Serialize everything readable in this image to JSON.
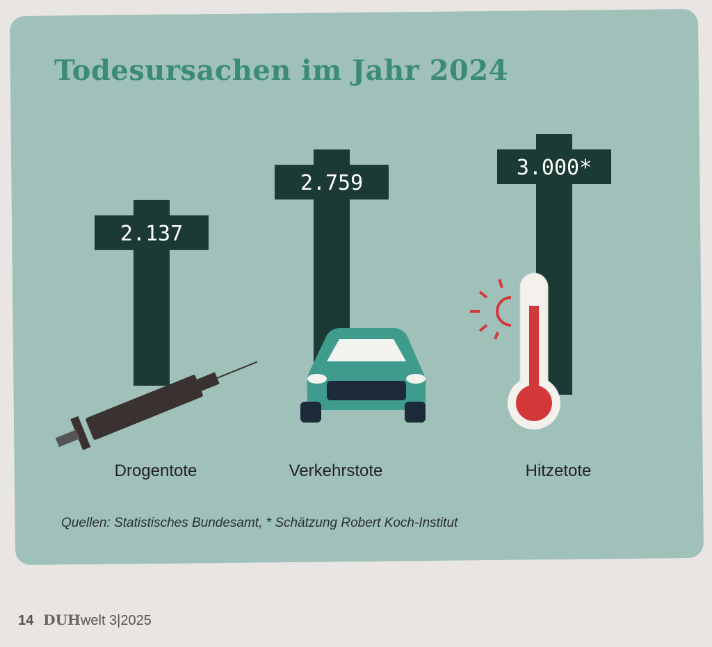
{
  "chart_data": {
    "type": "bar",
    "title": "Todesursachen im Jahr 2024",
    "categories": [
      "Drogentote",
      "Verkehrstote",
      "Hitzetote"
    ],
    "values": [
      2137,
      2759,
      3000
    ],
    "value_labels": [
      "2.137",
      "2.759",
      "3.000*"
    ],
    "icons": [
      "syringe-icon",
      "car-icon",
      "thermometer-sun-icon"
    ],
    "mark_shape": "cross",
    "source": "Quellen: Statistisches Bundesamt, * Schätzung Robert Koch-Institut",
    "colors": {
      "panel": "#9fc1b9",
      "cross": "#1b3a33",
      "title": "#3c8b79",
      "accent_red": "#d2383a",
      "car": "#3f9b8c"
    }
  },
  "footer": {
    "page": "14",
    "brand": "DUH",
    "issue": "welt 3|2025"
  }
}
